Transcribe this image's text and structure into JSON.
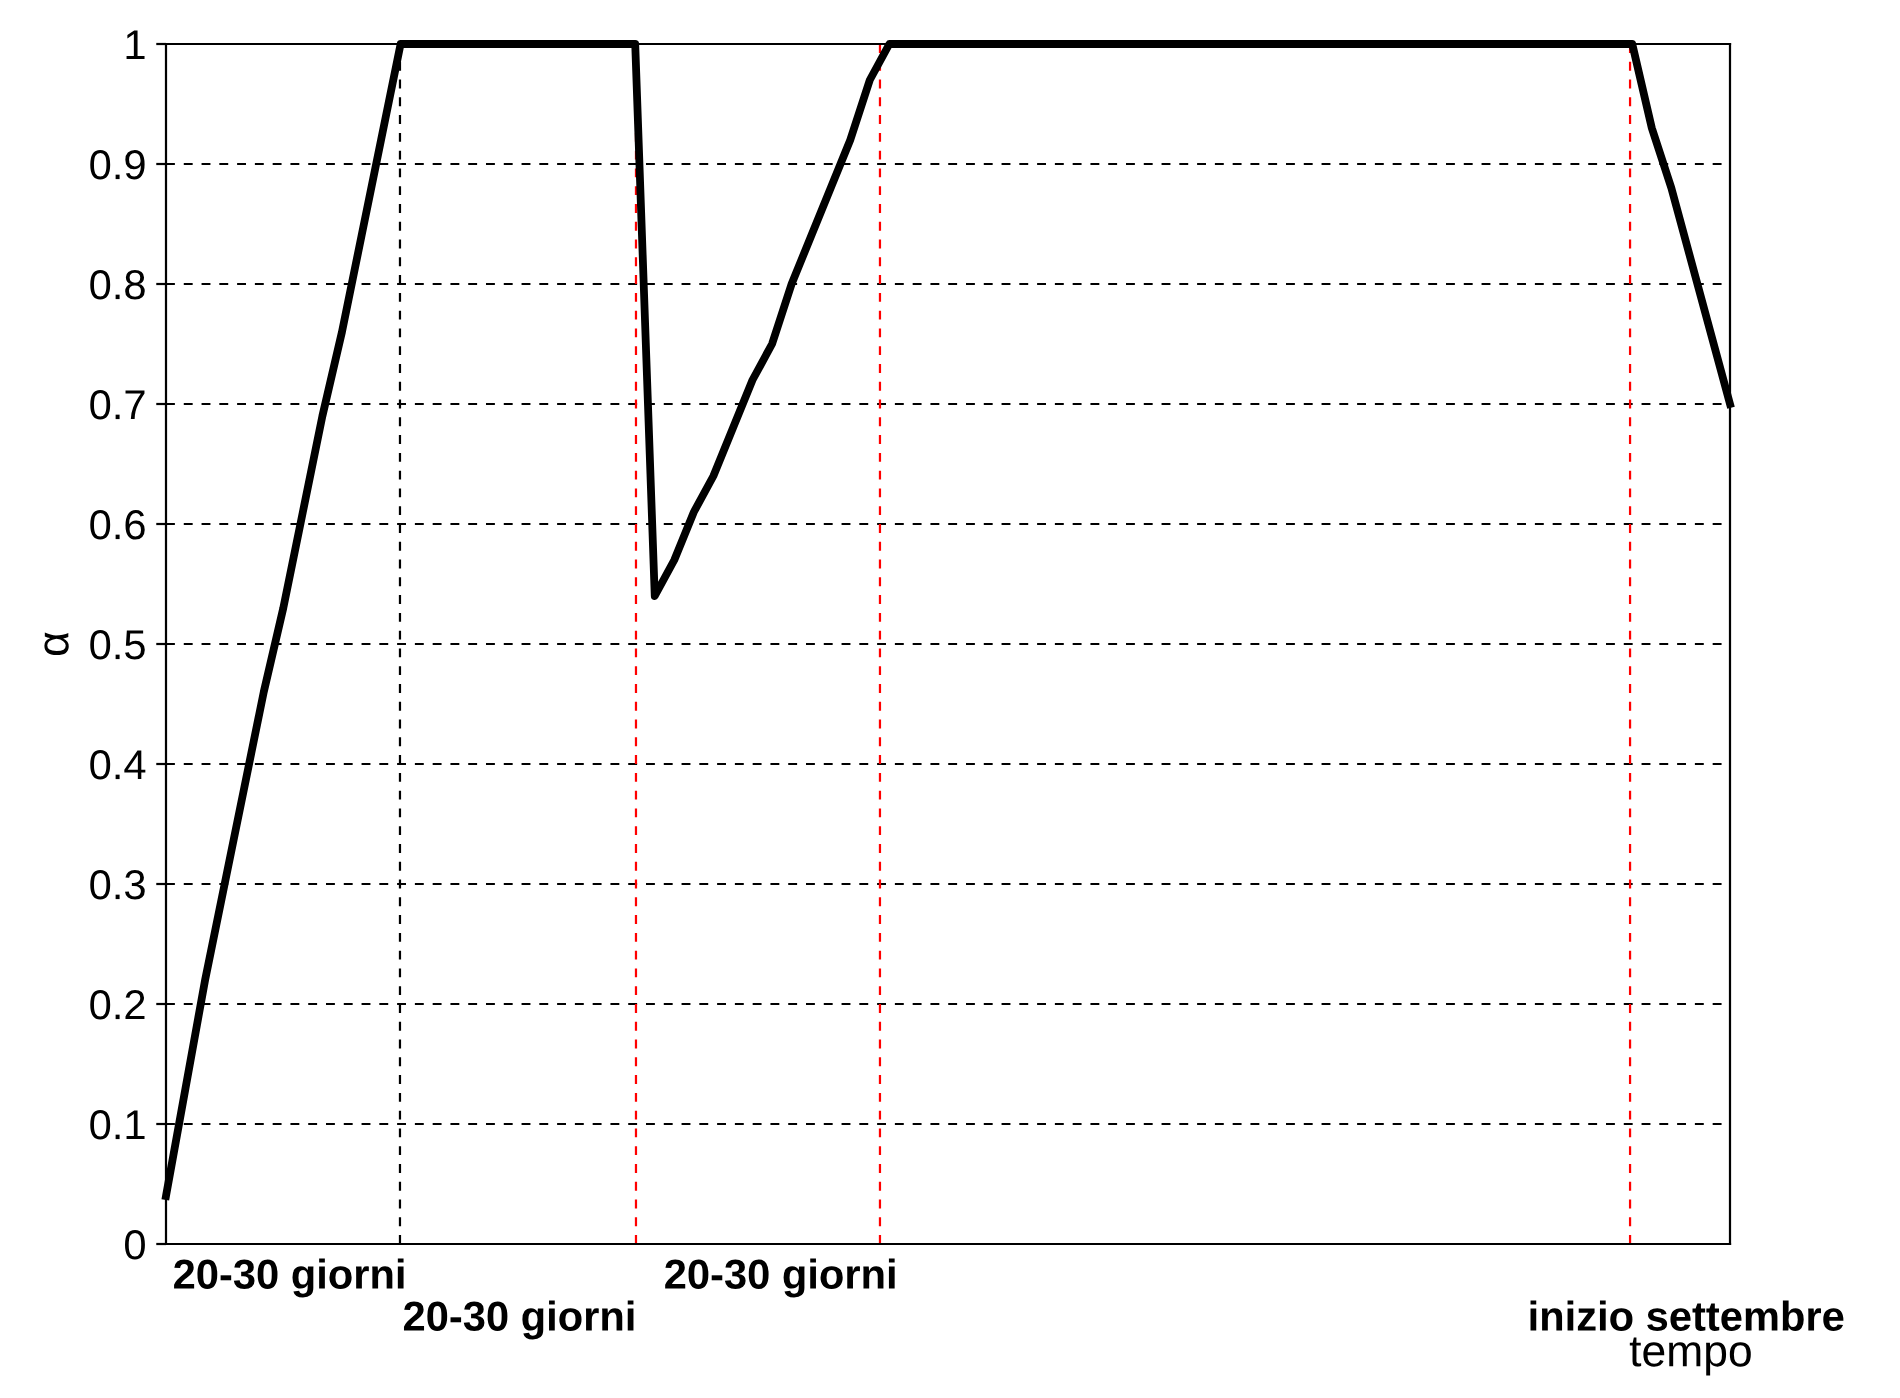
{
  "chart_data": {
    "type": "line",
    "xlabel": "tempo",
    "ylabel": "α",
    "ylim": [
      0,
      1
    ],
    "categories": [
      null,
      null,
      null,
      null,
      null,
      null,
      null,
      null,
      null,
      null,
      null,
      null,
      null,
      null,
      null,
      null,
      null,
      null,
      null,
      null,
      null,
      null,
      null,
      null,
      null,
      null,
      null,
      null,
      null,
      null,
      null,
      null,
      null,
      null,
      null,
      null,
      null,
      null,
      null,
      null,
      null,
      null,
      null,
      null,
      null,
      null,
      null,
      null,
      null,
      null,
      null,
      null,
      null,
      null,
      null,
      null,
      null,
      null,
      null,
      null,
      null,
      null,
      null,
      null,
      null,
      null,
      null,
      null,
      null,
      null,
      null,
      null,
      null,
      null,
      null,
      null,
      null,
      null,
      null,
      null,
      null
    ],
    "annotations": [
      "20-30 giorni",
      "20-30 giorni",
      "20-30 giorni",
      "inizio settembre"
    ],
    "yticks": [
      0,
      0.1,
      0.2,
      0.3,
      0.4,
      0.5,
      0.6,
      0.7,
      0.8,
      0.9,
      1
    ],
    "grid": true,
    "line_style": "solid",
    "marker": "none",
    "series": [
      {
        "color": "#000000",
        "values": [
          0.04,
          0.13,
          0.22,
          0.3,
          0.38,
          0.46,
          0.53,
          0.61,
          0.69,
          0.76,
          0.84,
          0.92,
          1,
          1,
          1,
          1,
          1,
          1,
          1,
          1,
          1,
          1,
          1,
          1,
          1,
          0.54,
          0.57,
          0.61,
          0.64,
          0.68,
          0.72,
          0.75,
          0.8,
          0.84,
          0.88,
          0.92,
          0.97,
          1,
          1,
          1,
          1,
          1,
          1,
          1,
          1,
          1,
          1,
          1,
          1,
          1,
          1,
          1,
          1,
          1,
          1,
          1,
          1,
          1,
          1,
          1,
          1,
          1,
          1,
          1,
          1,
          1,
          1,
          1,
          1,
          1,
          1,
          1,
          1,
          1,
          1,
          1,
          0.93,
          0.88,
          0.82,
          0.76,
          0.7
        ]
      }
    ]
  }
}
